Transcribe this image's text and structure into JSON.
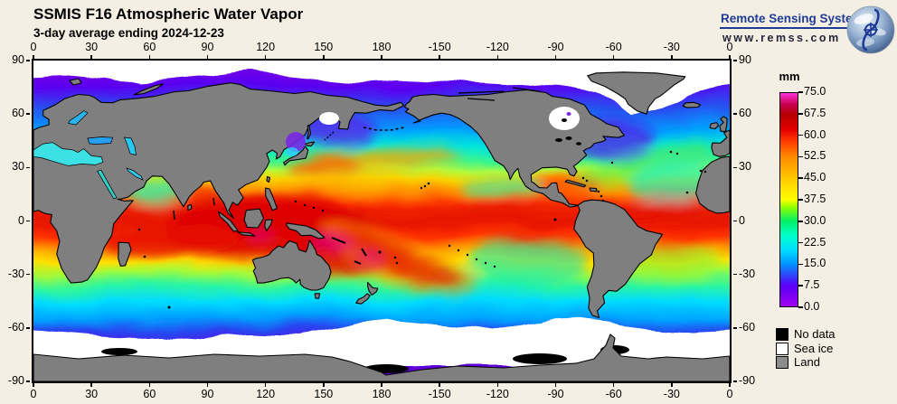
{
  "header": {
    "title": "SSMIS F16 Atmospheric Water Vapor",
    "subtitle": "3-day average ending 2024-12-23"
  },
  "logo": {
    "name": "Remote Sensing Systems",
    "url": "www.remss.com",
    "brand_color": "#1E3C96",
    "globe_icon": "earth-integral-icon"
  },
  "axes": {
    "lon_labels": [
      "0",
      "30",
      "60",
      "90",
      "120",
      "150",
      "180",
      "-150",
      "-120",
      "-90",
      "-60",
      "-30",
      "0"
    ],
    "lat_labels": [
      "90",
      "60",
      "30",
      "0",
      "-30",
      "-60",
      "-90"
    ]
  },
  "colorbar": {
    "unit": "mm",
    "min": 0,
    "max": 75,
    "tick_labels": [
      "75.0",
      "67.5",
      "60.0",
      "52.5",
      "45.0",
      "37.5",
      "30.0",
      "22.5",
      "15.0",
      "7.5",
      "0.0"
    ],
    "stops": [
      {
        "value": 0,
        "color": "#A100F0"
      },
      {
        "value": 7.5,
        "color": "#5A00F8"
      },
      {
        "value": 15,
        "color": "#0096FF"
      },
      {
        "value": 20,
        "color": "#00E0FF"
      },
      {
        "value": 25,
        "color": "#00FFC8"
      },
      {
        "value": 30,
        "color": "#00F064"
      },
      {
        "value": 35,
        "color": "#96FF00"
      },
      {
        "value": 37.5,
        "color": "#FFFF00"
      },
      {
        "value": 45,
        "color": "#FFC800"
      },
      {
        "value": 52.5,
        "color": "#FF8C00"
      },
      {
        "value": 58,
        "color": "#FF3C00"
      },
      {
        "value": 62,
        "color": "#E60000"
      },
      {
        "value": 67.5,
        "color": "#B40000"
      },
      {
        "value": 71,
        "color": "#C80050"
      },
      {
        "value": 75,
        "color": "#FF32DC"
      }
    ]
  },
  "legend": {
    "items": [
      {
        "label": "No data",
        "color": "#000000"
      },
      {
        "label": "Sea ice",
        "color": "#FFFFFF"
      },
      {
        "label": "Land",
        "color": "#8C8C8C"
      }
    ]
  },
  "map": {
    "land_color": "#7F7F7F",
    "background_color": "#F4EFE2"
  }
}
